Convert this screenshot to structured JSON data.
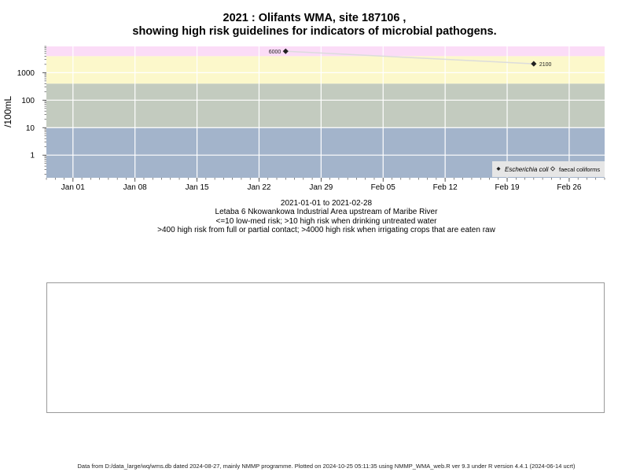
{
  "title_line1": "2021 : Olifants WMA, site 187106 ,",
  "title_line2": "showing high risk guidelines for indicators of microbial pathogens.",
  "chart_data": {
    "type": "scatter",
    "ylabel": "/100mL",
    "y_scale": "log",
    "ylim": [
      0.15,
      9000
    ],
    "y_ticks": [
      1,
      10,
      100,
      1000
    ],
    "y_tick_labels": [
      "1",
      "10",
      "100",
      "1000"
    ],
    "xlim": [
      "2020-12-29",
      "2021-03-02"
    ],
    "x_ticks": [
      "2021-01-01",
      "2021-01-08",
      "2021-01-15",
      "2021-01-22",
      "2021-01-29",
      "2021-02-05",
      "2021-02-12",
      "2021-02-19",
      "2021-02-26"
    ],
    "x_tick_labels": [
      "Jan 01",
      "Jan 08",
      "Jan 15",
      "Jan 22",
      "Jan 29",
      "Feb 05",
      "Feb 12",
      "Feb 19",
      "Feb 26"
    ],
    "grid": true,
    "risk_bands": [
      {
        "from": 0.15,
        "to": 10,
        "color": "#a3b4cb"
      },
      {
        "from": 10,
        "to": 400,
        "color": "#c3cbbf"
      },
      {
        "from": 400,
        "to": 4000,
        "color": "#fcf8cb"
      },
      {
        "from": 4000,
        "to": 9000,
        "color": "#fbdcf7"
      }
    ],
    "series": [
      {
        "name": "Escherichia coli",
        "marker": "filled-diamond",
        "color": "#222222",
        "points": [
          {
            "x": "2021-01-25",
            "y": 6000,
            "label": "6000"
          },
          {
            "x": "2021-02-22",
            "y": 2100,
            "label": "2100"
          }
        ]
      },
      {
        "name": "faecal coliforms",
        "marker": "open-diamond",
        "color": "#222222",
        "points": []
      }
    ],
    "legend_position": "bottom-right",
    "connector_line_color": "#dcdcdc"
  },
  "caption": {
    "date_range": "2021-01-01 to 2021-02-28",
    "site": "Letaba 6 Nkowankowa Industrial Area upstream of Maribe River",
    "guideline1": "<=10 low-med risk; >10 high risk when drinking untreated water",
    "guideline2": ">400 high risk from full or partial contact; >4000 high risk when irrigating crops that are eaten raw"
  },
  "footer": "Data from D:/data_large/wq/wms.db dated 2024-08-27, mainly NMMP programme. Plotted on 2024-10-25 05:11:35 using NMMP_WMA_web.R ver 9.3 under R version 4.4.1 (2024-06-14 ucrt)"
}
